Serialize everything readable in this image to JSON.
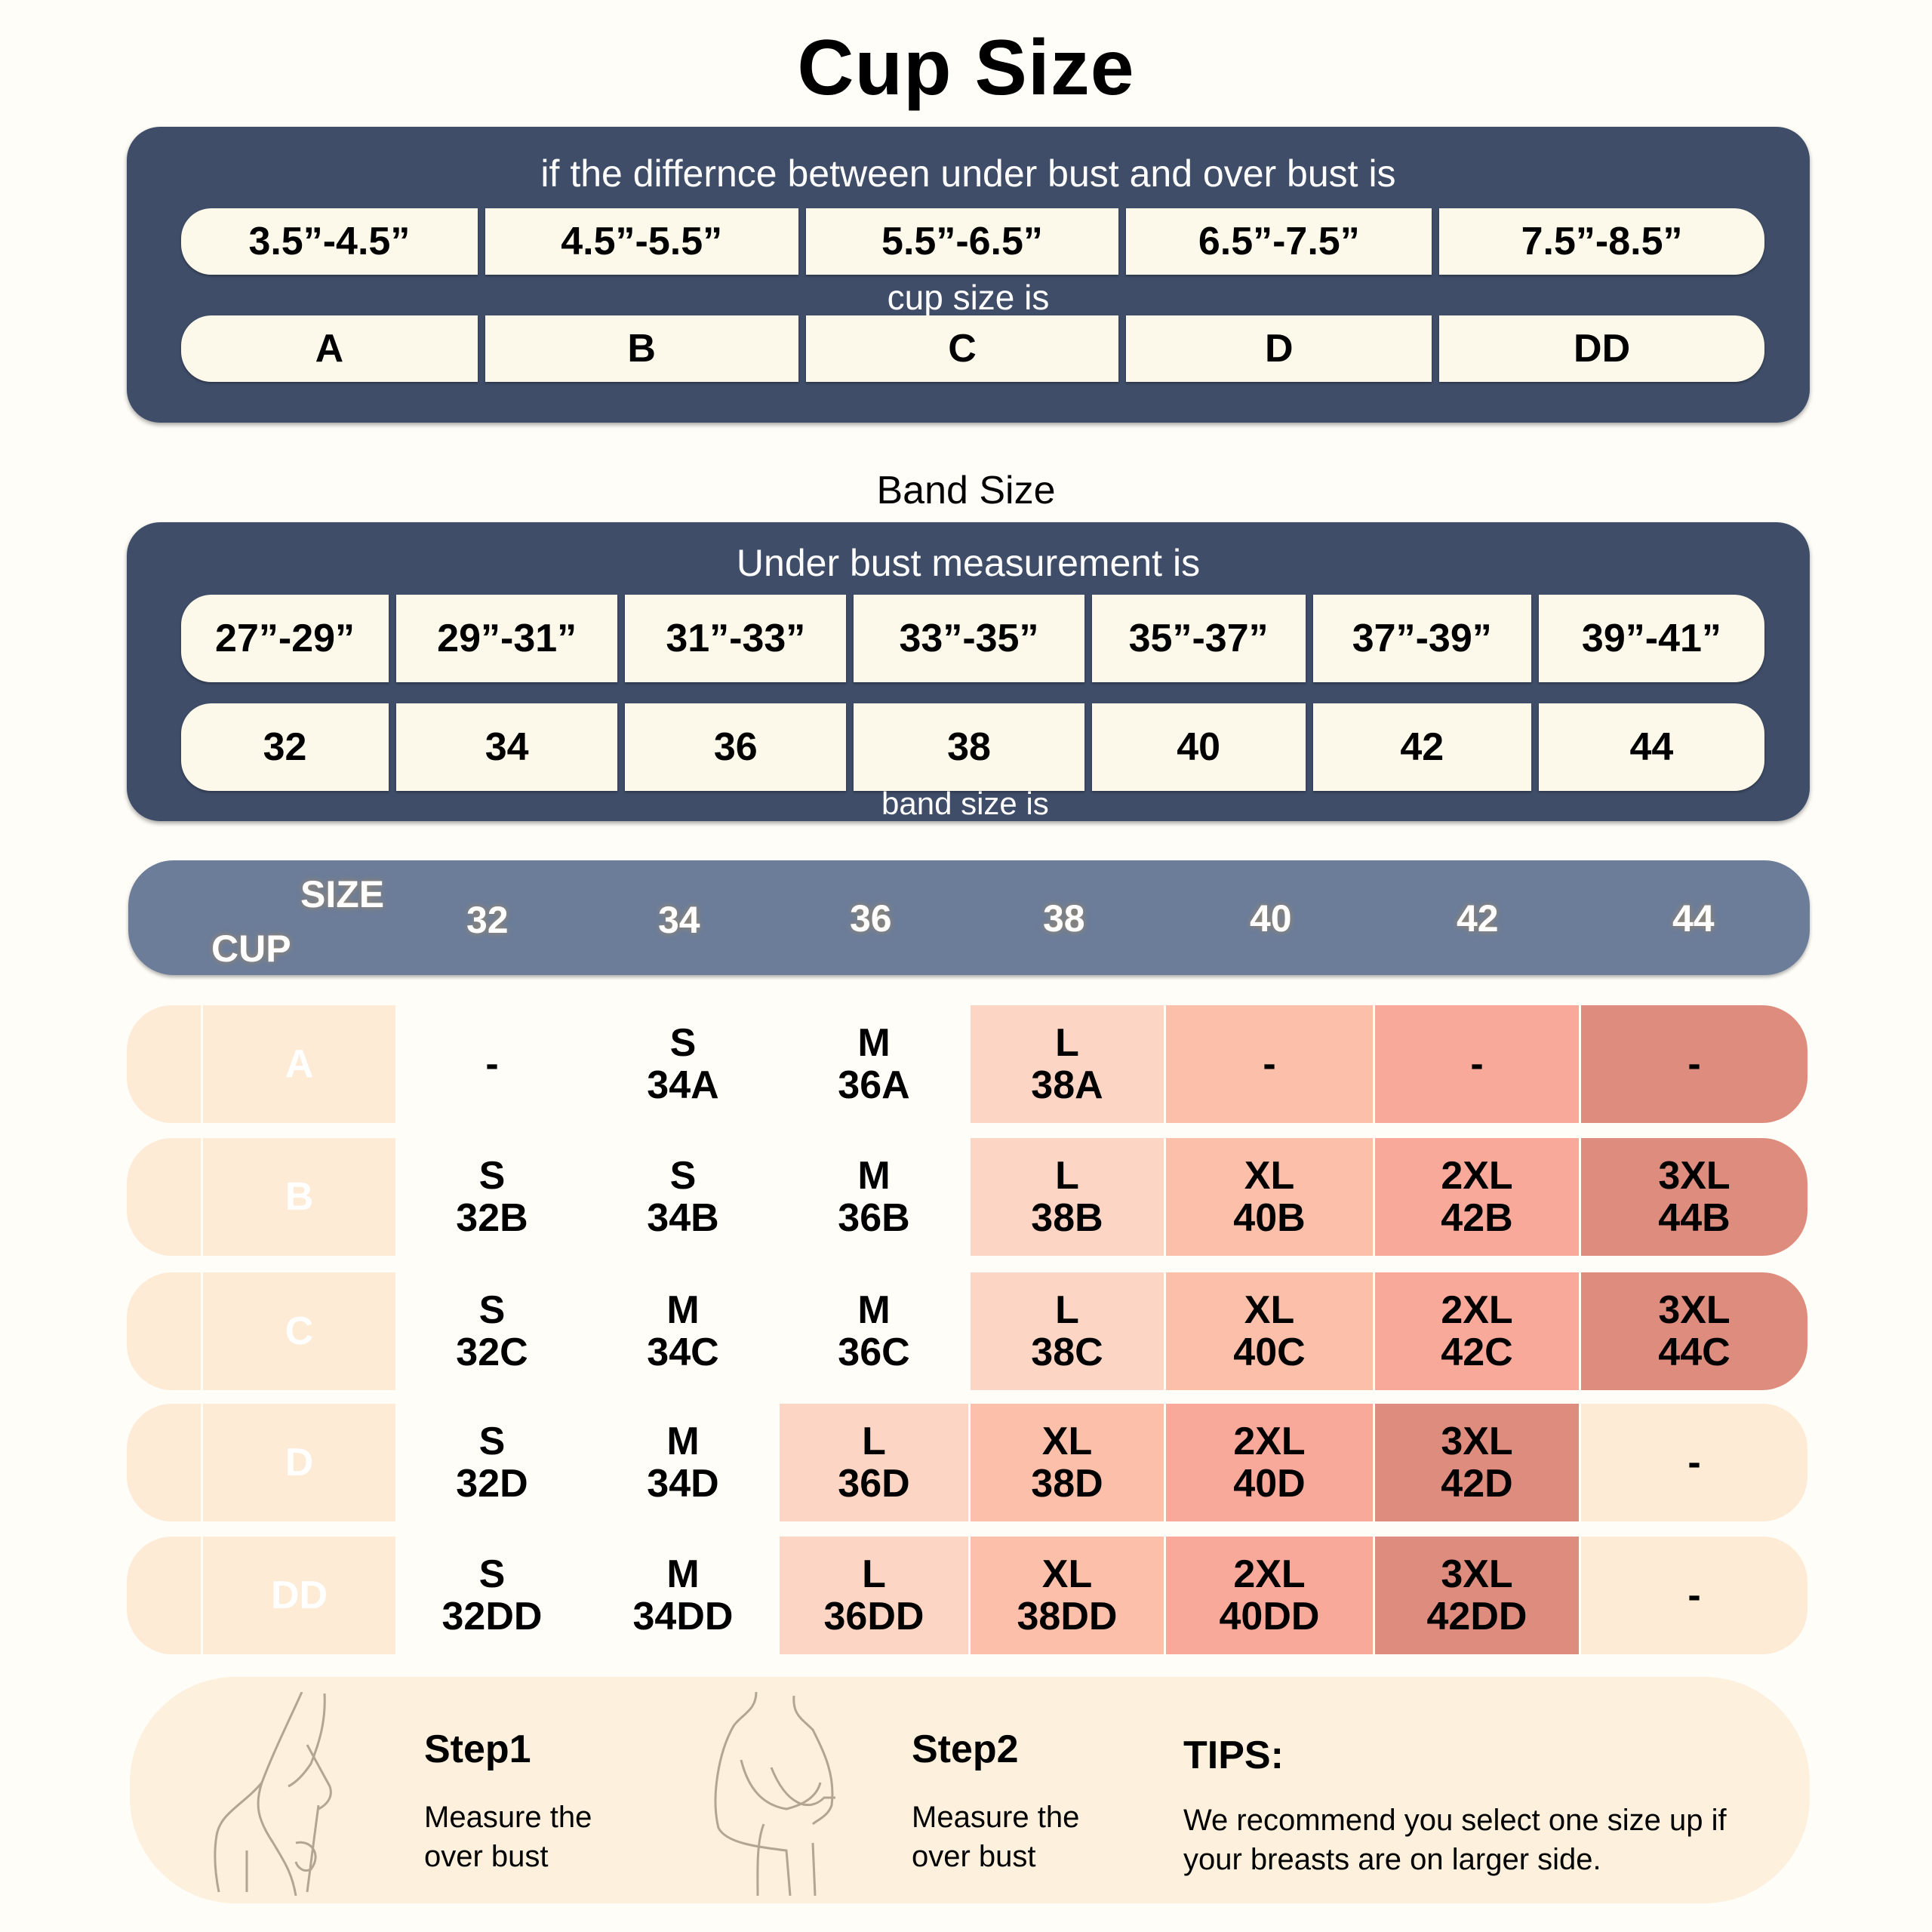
{
  "title": "Cup Size",
  "cup_panel": {
    "caption": "if the differnce between under bust and over bust is",
    "ranges": [
      "3.5”-4.5”",
      "4.5”-5.5”",
      "5.5”-6.5”",
      "6.5”-7.5”",
      "7.5”-8.5”"
    ],
    "mid_caption": "cup size is",
    "cups": [
      "A",
      "B",
      "C",
      "D",
      "DD"
    ]
  },
  "band_section_label": "Band Size",
  "band_panel": {
    "caption": "Under bust measurement is",
    "ranges": [
      "27”-29”",
      "29”-31”",
      "31”-33”",
      "33”-35”",
      "35”-37”",
      "37”-39”",
      "39”-41”"
    ],
    "bands": [
      "32",
      "34",
      "36",
      "38",
      "40",
      "42",
      "44"
    ],
    "bottom_caption": "band size is"
  },
  "matrix": {
    "size_label": "SIZE",
    "cup_label": "CUP",
    "columns": [
      "32",
      "34",
      "36",
      "38",
      "40",
      "42",
      "44"
    ],
    "rows": [
      {
        "cup": "A",
        "cells": [
          {
            "size": "-",
            "code": ""
          },
          {
            "size": "S",
            "code": "34A"
          },
          {
            "size": "M",
            "code": "36A"
          },
          {
            "size": "L",
            "code": "38A"
          },
          {
            "size": "-",
            "code": ""
          },
          {
            "size": "-",
            "code": ""
          },
          {
            "size": "-",
            "code": ""
          }
        ]
      },
      {
        "cup": "B",
        "cells": [
          {
            "size": "S",
            "code": "32B"
          },
          {
            "size": "S",
            "code": "34B"
          },
          {
            "size": "M",
            "code": "36B"
          },
          {
            "size": "L",
            "code": "38B"
          },
          {
            "size": "XL",
            "code": "40B"
          },
          {
            "size": "2XL",
            "code": "42B"
          },
          {
            "size": "3XL",
            "code": "44B"
          }
        ]
      },
      {
        "cup": "C",
        "cells": [
          {
            "size": "S",
            "code": "32C"
          },
          {
            "size": "M",
            "code": "34C"
          },
          {
            "size": "M",
            "code": "36C"
          },
          {
            "size": "L",
            "code": "38C"
          },
          {
            "size": "XL",
            "code": "40C"
          },
          {
            "size": "2XL",
            "code": "42C"
          },
          {
            "size": "3XL",
            "code": "44C"
          }
        ]
      },
      {
        "cup": "D",
        "cells": [
          {
            "size": "S",
            "code": "32D"
          },
          {
            "size": "M",
            "code": "34D"
          },
          {
            "size": "L",
            "code": "36D"
          },
          {
            "size": "XL",
            "code": "38D"
          },
          {
            "size": "2XL",
            "code": "40D"
          },
          {
            "size": "3XL",
            "code": "42D"
          },
          {
            "size": "-",
            "code": ""
          }
        ]
      },
      {
        "cup": "DD",
        "cells": [
          {
            "size": "S",
            "code": "32DD"
          },
          {
            "size": "M",
            "code": "34DD"
          },
          {
            "size": "L",
            "code": "36DD"
          },
          {
            "size": "XL",
            "code": "38DD"
          },
          {
            "size": "2XL",
            "code": "40DD"
          },
          {
            "size": "3XL",
            "code": "42DD"
          },
          {
            "size": "-",
            "code": ""
          }
        ]
      }
    ]
  },
  "colors": {
    "navy": "#3f4d68",
    "header_blue": "#6c7d99",
    "cream": "#fdf9ea",
    "peach_light": "#fdebd6",
    "tier_white": "#fffdf8",
    "tier_L": "#fdd5c4",
    "tier_XL": "#fcbfa9",
    "tier_2XL": "#f8a99a",
    "tier_3XL": "#de8c7d"
  },
  "steps": [
    {
      "title": "Step1",
      "line1": "Measure the",
      "line2": "over bust"
    },
    {
      "title": "Step2",
      "line1": "Measure the",
      "line2": "over bust"
    }
  ],
  "tips": {
    "title": "TIPS:",
    "line1": "We recommend you select one size up if",
    "line2": "your breasts are on larger side."
  }
}
